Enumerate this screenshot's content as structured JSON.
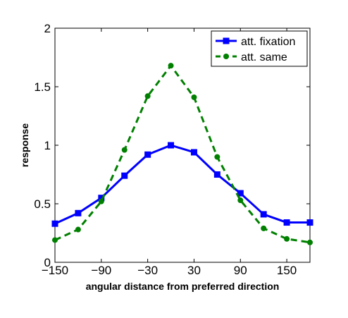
{
  "chart_data": {
    "type": "line",
    "xlabel": "angular distance from preferred direction",
    "ylabel": "response",
    "xlim": [
      -150,
      180
    ],
    "ylim": [
      0,
      2
    ],
    "x_ticks": [
      -150,
      -90,
      -30,
      30,
      90,
      150
    ],
    "x_tick_labels": [
      "−150",
      "−90",
      "−30",
      "30",
      "90",
      "150"
    ],
    "y_ticks": [
      0,
      0.5,
      1,
      1.5,
      2
    ],
    "y_tick_labels": [
      "0",
      "0.5",
      "1",
      "1.5",
      "2"
    ],
    "grid": false,
    "legend_position": "top-right",
    "series": [
      {
        "name": "att. fixation",
        "color": "#0000ff",
        "line_style": "solid",
        "marker": "square",
        "x": [
          -150,
          -120,
          -90,
          -60,
          -30,
          0,
          30,
          60,
          90,
          120,
          150,
          180
        ],
        "y": [
          0.33,
          0.42,
          0.55,
          0.74,
          0.92,
          1.0,
          0.94,
          0.75,
          0.59,
          0.41,
          0.34,
          0.34
        ]
      },
      {
        "name": "att. same",
        "color": "#008000",
        "line_style": "dashed",
        "marker": "circle",
        "x": [
          -150,
          -120,
          -90,
          -60,
          -30,
          0,
          30,
          60,
          90,
          120,
          150,
          180
        ],
        "y": [
          0.19,
          0.28,
          0.52,
          0.96,
          1.42,
          1.68,
          1.41,
          0.9,
          0.53,
          0.29,
          0.2,
          0.17
        ]
      }
    ]
  }
}
